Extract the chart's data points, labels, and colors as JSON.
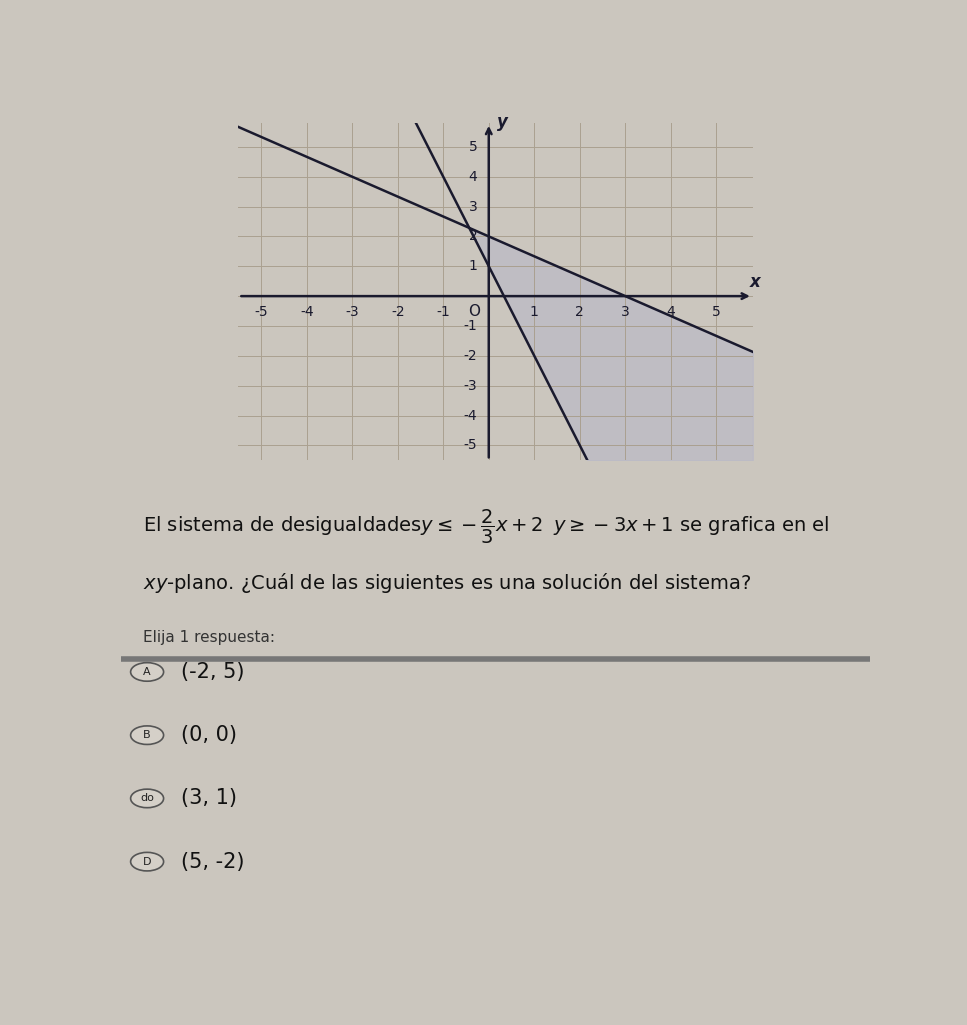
{
  "xlim": [
    -5.5,
    5.8
  ],
  "ylim": [
    -5.5,
    5.8
  ],
  "xticks": [
    -5,
    -4,
    -3,
    -2,
    -1,
    1,
    2,
    3,
    4,
    5
  ],
  "yticks": [
    -5,
    -4,
    -3,
    -2,
    -1,
    1,
    2,
    3,
    4,
    5
  ],
  "line1_slope": -0.6667,
  "line1_intercept": 2,
  "line2_slope": -3,
  "line2_intercept": 1,
  "line_color": "#1a1a2e",
  "shade_color": "#b8b8c8",
  "shade_alpha": 0.6,
  "fig_bg_color": "#cbc6be",
  "graph_bg_color": "#cbc6be",
  "grid_color": "#aaa090",
  "axis_color": "#1a1a2e",
  "tick_fontsize": 10,
  "options": [
    {
      "label": "A",
      "text": "(-2, 5)"
    },
    {
      "label": "B",
      "text": "(0, 0)"
    },
    {
      "label": "do",
      "text": "(3, 1)"
    },
    {
      "label": "D",
      "text": "(5, -2)"
    }
  ]
}
